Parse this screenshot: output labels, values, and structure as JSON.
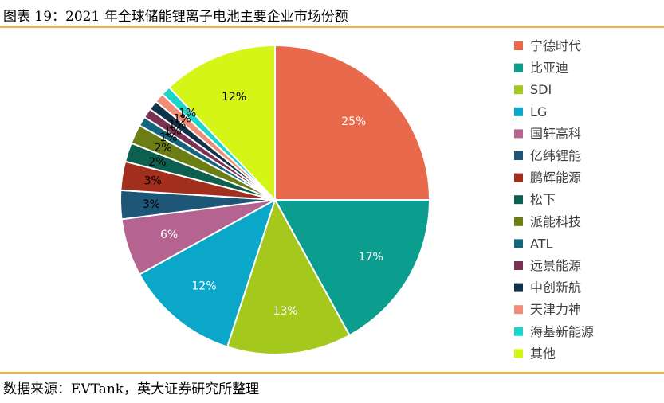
{
  "title": "图表 19：2021 年全球储能锂离子电池主要企业市场份额",
  "source": "数据来源：EVTank，英大证券研究所整理",
  "chart_data": {
    "type": "pie",
    "legend_position": "right",
    "slices": [
      {
        "label": "宁德时代",
        "value": 25,
        "display": "25%",
        "color": "#E8694B"
      },
      {
        "label": "比亚迪",
        "value": 17,
        "display": "17%",
        "color": "#0B9E8E"
      },
      {
        "label": "SDI",
        "value": 13,
        "display": "13%",
        "color": "#A5C81C"
      },
      {
        "label": "LG",
        "value": 12,
        "display": "12%",
        "color": "#0AA7C9"
      },
      {
        "label": "国轩高科",
        "value": 6,
        "display": "6%",
        "color": "#B56390"
      },
      {
        "label": "亿纬锂能",
        "value": 3,
        "display": "3%",
        "color": "#1E5677"
      },
      {
        "label": "鹏辉能源",
        "value": 3,
        "display": "3%",
        "color": "#A22E1E"
      },
      {
        "label": "松下",
        "value": 2,
        "display": "2%",
        "color": "#0D5F4F"
      },
      {
        "label": "派能科技",
        "value": 2,
        "display": "2%",
        "color": "#6B7E14"
      },
      {
        "label": "ATL",
        "value": 1,
        "display": "1%",
        "color": "#13657C"
      },
      {
        "label": "远景能源",
        "value": 1,
        "display": "1%",
        "color": "#7A3154"
      },
      {
        "label": "中创新航",
        "value": 1,
        "display": "1%",
        "color": "#12324A"
      },
      {
        "label": "天津力神",
        "value": 1,
        "display": "1%",
        "color": "#F08C78"
      },
      {
        "label": "海基新能源",
        "value": 1,
        "display": "1%",
        "color": "#1BD6C8"
      },
      {
        "label": "其他",
        "value": 12,
        "display": "12%",
        "color": "#D4F515"
      }
    ]
  }
}
